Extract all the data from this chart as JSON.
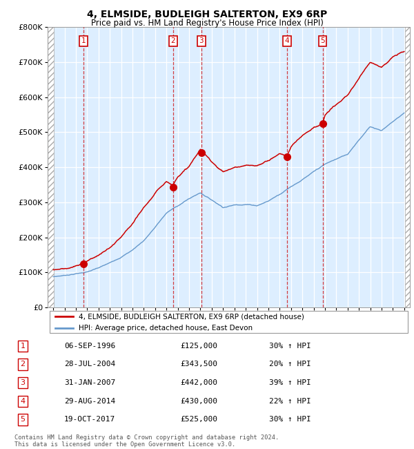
{
  "title1": "4, ELMSIDE, BUDLEIGH SALTERTON, EX9 6RP",
  "title2": "Price paid vs. HM Land Registry's House Price Index (HPI)",
  "xlim": [
    1993.5,
    2025.5
  ],
  "ylim": [
    0,
    800000
  ],
  "yticks": [
    0,
    100000,
    200000,
    300000,
    400000,
    500000,
    600000,
    700000,
    800000
  ],
  "ytick_labels": [
    "£0",
    "£100K",
    "£200K",
    "£300K",
    "£400K",
    "£500K",
    "£600K",
    "£700K",
    "£800K"
  ],
  "xticks": [
    1994,
    1995,
    1996,
    1997,
    1998,
    1999,
    2000,
    2001,
    2002,
    2003,
    2004,
    2005,
    2006,
    2007,
    2008,
    2009,
    2010,
    2011,
    2012,
    2013,
    2014,
    2015,
    2016,
    2017,
    2018,
    2019,
    2020,
    2021,
    2022,
    2023,
    2024,
    2025
  ],
  "sale_dates_x": [
    1996.68,
    2004.57,
    2007.08,
    2014.66,
    2017.79
  ],
  "sale_prices_y": [
    125000,
    343500,
    442000,
    430000,
    525000
  ],
  "sale_numbers": [
    "1",
    "2",
    "3",
    "4",
    "5"
  ],
  "red_color": "#cc0000",
  "hpi_color": "#6699cc",
  "bg_color": "#ddeeff",
  "grid_color": "#c8d8e8",
  "legend_label_red": "4, ELMSIDE, BUDLEIGH SALTERTON, EX9 6RP (detached house)",
  "legend_label_blue": "HPI: Average price, detached house, East Devon",
  "table_rows": [
    [
      "1",
      "06-SEP-1996",
      "£125,000",
      "30% ↑ HPI"
    ],
    [
      "2",
      "28-JUL-2004",
      "£343,500",
      "20% ↑ HPI"
    ],
    [
      "3",
      "31-JAN-2007",
      "£442,000",
      "39% ↑ HPI"
    ],
    [
      "4",
      "29-AUG-2014",
      "£430,000",
      "22% ↑ HPI"
    ],
    [
      "5",
      "19-OCT-2017",
      "£525,000",
      "30% ↑ HPI"
    ]
  ],
  "footer": "Contains HM Land Registry data © Crown copyright and database right 2024.\nThis data is licensed under the Open Government Licence v3.0.",
  "hpi_anchors_x": [
    1994,
    1995,
    1996,
    1997,
    1998,
    1999,
    2000,
    2001,
    2002,
    2003,
    2004,
    2005,
    2006,
    2007,
    2008,
    2009,
    2010,
    2011,
    2012,
    2013,
    2014,
    2015,
    2016,
    2017,
    2018,
    2019,
    2020,
    2021,
    2022,
    2023,
    2024,
    2025
  ],
  "hpi_anchors_y": [
    88000,
    92000,
    97000,
    102000,
    112000,
    125000,
    143000,
    163000,
    190000,
    228000,
    268000,
    288000,
    308000,
    325000,
    305000,
    285000,
    292000,
    295000,
    292000,
    305000,
    325000,
    348000,
    368000,
    388000,
    408000,
    422000,
    435000,
    478000,
    515000,
    505000,
    530000,
    555000
  ],
  "price_anchors_x": [
    1994,
    1995,
    1996,
    1996.68,
    1997,
    1998,
    1999,
    2000,
    2001,
    2002,
    2003,
    2004,
    2004.57,
    2005,
    2006,
    2007,
    2007.08,
    2008,
    2009,
    2010,
    2011,
    2012,
    2013,
    2014,
    2014.66,
    2015,
    2016,
    2017,
    2017.79,
    2018,
    2019,
    2020,
    2021,
    2022,
    2023,
    2024,
    2025
  ],
  "price_anchors_y": [
    108000,
    113000,
    120000,
    125000,
    135000,
    152000,
    172000,
    200000,
    235000,
    278000,
    318000,
    355000,
    343500,
    372000,
    400000,
    448000,
    442000,
    412000,
    385000,
    398000,
    402000,
    398000,
    415000,
    435000,
    430000,
    455000,
    488000,
    515000,
    525000,
    548000,
    578000,
    600000,
    648000,
    698000,
    685000,
    715000,
    730000
  ]
}
